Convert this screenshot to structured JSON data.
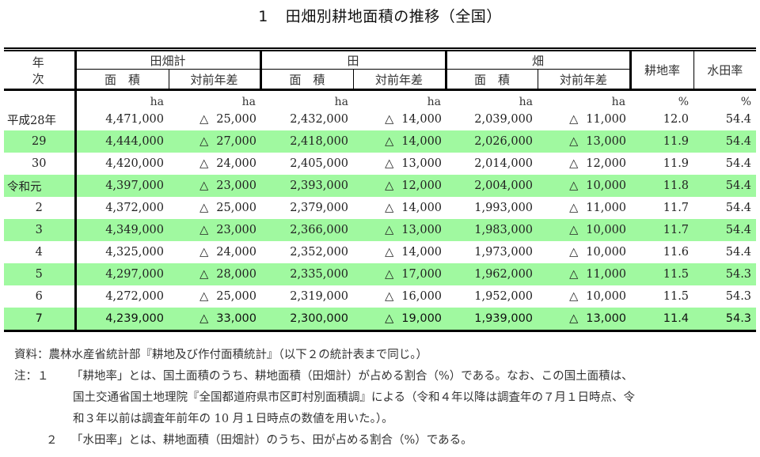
{
  "title": {
    "number": "1",
    "text": "田畑別耕地面積の推移（全国）"
  },
  "table": {
    "headers": {
      "year": "年 次",
      "groups": [
        "田畑計",
        "田",
        "畑"
      ],
      "sub": [
        "面　積",
        "対前年差"
      ],
      "rates": [
        "耕地率",
        "水田率"
      ]
    },
    "units": [
      "ha",
      "ha",
      "ha",
      "ha",
      "ha",
      "ha",
      "%",
      "%"
    ],
    "triangle": "△",
    "rows": [
      {
        "year": "平成28年",
        "total_area": "4,471,000",
        "total_diff": "25,000",
        "paddy_area": "2,432,000",
        "paddy_diff": "14,000",
        "upland_area": "2,039,000",
        "upland_diff": "11,000",
        "cultivated_rate": "12.0",
        "paddy_rate": "54.4",
        "highlight": false
      },
      {
        "year": "29",
        "total_area": "4,444,000",
        "total_diff": "27,000",
        "paddy_area": "2,418,000",
        "paddy_diff": "14,000",
        "upland_area": "2,026,000",
        "upland_diff": "13,000",
        "cultivated_rate": "11.9",
        "paddy_rate": "54.4",
        "highlight": true
      },
      {
        "year": "30",
        "total_area": "4,420,000",
        "total_diff": "24,000",
        "paddy_area": "2,405,000",
        "paddy_diff": "13,000",
        "upland_area": "2,014,000",
        "upland_diff": "12,000",
        "cultivated_rate": "11.9",
        "paddy_rate": "54.4",
        "highlight": false
      },
      {
        "year": "令和元",
        "total_area": "4,397,000",
        "total_diff": "23,000",
        "paddy_area": "2,393,000",
        "paddy_diff": "12,000",
        "upland_area": "2,004,000",
        "upland_diff": "10,000",
        "cultivated_rate": "11.8",
        "paddy_rate": "54.4",
        "highlight": true
      },
      {
        "year": "2",
        "total_area": "4,372,000",
        "total_diff": "25,000",
        "paddy_area": "2,379,000",
        "paddy_diff": "14,000",
        "upland_area": "1,993,000",
        "upland_diff": "11,000",
        "cultivated_rate": "11.7",
        "paddy_rate": "54.4",
        "highlight": false
      },
      {
        "year": "3",
        "total_area": "4,349,000",
        "total_diff": "23,000",
        "paddy_area": "2,366,000",
        "paddy_diff": "13,000",
        "upland_area": "1,983,000",
        "upland_diff": "10,000",
        "cultivated_rate": "11.7",
        "paddy_rate": "54.4",
        "highlight": true
      },
      {
        "year": "4",
        "total_area": "4,325,000",
        "total_diff": "24,000",
        "paddy_area": "2,352,000",
        "paddy_diff": "14,000",
        "upland_area": "1,973,000",
        "upland_diff": "10,000",
        "cultivated_rate": "11.6",
        "paddy_rate": "54.4",
        "highlight": false
      },
      {
        "year": "5",
        "total_area": "4,297,000",
        "total_diff": "28,000",
        "paddy_area": "2,335,000",
        "paddy_diff": "17,000",
        "upland_area": "1,962,000",
        "upland_diff": "11,000",
        "cultivated_rate": "11.5",
        "paddy_rate": "54.3",
        "highlight": true
      },
      {
        "year": "6",
        "total_area": "4,272,000",
        "total_diff": "25,000",
        "paddy_area": "2,319,000",
        "paddy_diff": "16,000",
        "upland_area": "1,952,000",
        "upland_diff": "10,000",
        "cultivated_rate": "11.5",
        "paddy_rate": "54.3",
        "highlight": false
      },
      {
        "year": "7",
        "total_area": "4,239,000",
        "total_diff": "33,000",
        "paddy_area": "2,300,000",
        "paddy_diff": "19,000",
        "upland_area": "1,939,000",
        "upland_diff": "13,000",
        "cultivated_rate": "11.4",
        "paddy_rate": "54.3",
        "highlight": true
      }
    ]
  },
  "notes": {
    "source_label": "資料：",
    "source_text": "農林水産省統計部『耕地及び作付面積統計』（以下２の統計表まで同じ。）",
    "note_label": "注：１",
    "note1_line1": "「耕地率」とは、国土面積のうち、耕地面積（田畑計）が占める割合（%）である。なお、この国土面積は、",
    "note1_line2": "国土交通省国土地理院『全国都道府県市区町村別面積調』による（令和４年以降は調査年の７月１日時点、令",
    "note1_line3": "和３年以前は調査年前年の 10 月１日時点の数値を用いた。）。",
    "note2_label": "２",
    "note2_text": "「水田率」とは、耕地面積（田畑計）のうち、田が占める割合（%）である。"
  },
  "colors": {
    "highlight_row": "#a0f9a0",
    "rule": "#000000",
    "text": "#222222"
  }
}
